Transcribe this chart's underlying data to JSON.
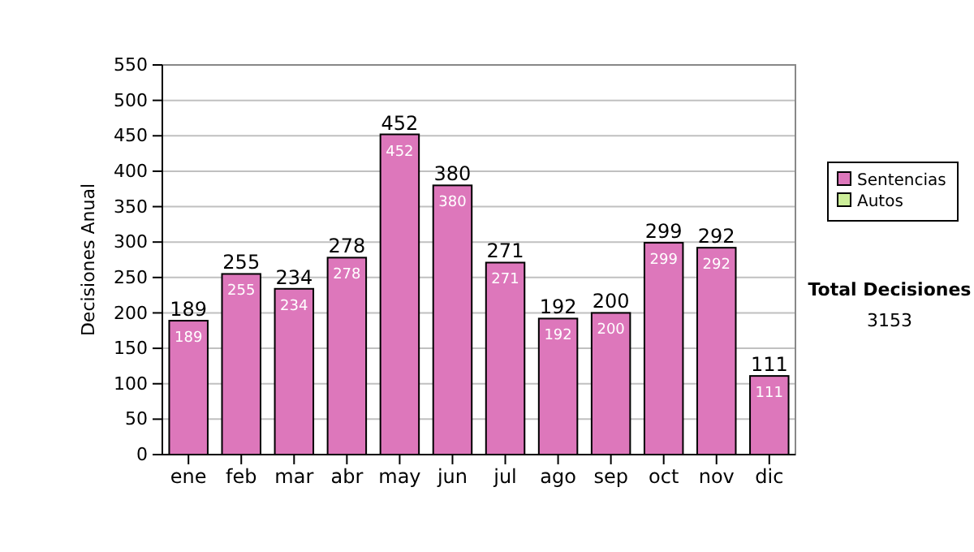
{
  "chart_data": {
    "type": "bar",
    "ylabel": "Decisiones Anual",
    "categories": [
      "ene",
      "feb",
      "mar",
      "abr",
      "may",
      "jun",
      "jul",
      "ago",
      "sep",
      "oct",
      "nov",
      "dic"
    ],
    "stacked": true,
    "series": [
      {
        "name": "Sentencias",
        "color": "#dd77bb",
        "values": [
          189,
          255,
          234,
          278,
          452,
          380,
          271,
          192,
          200,
          299,
          292,
          111
        ],
        "value_labels": [
          "189",
          "255",
          "234",
          "278",
          "452",
          "380",
          "271",
          "192",
          "200",
          "299",
          "292",
          "111"
        ]
      },
      {
        "name": "Autos",
        "color": "#ccee99",
        "values": [
          0,
          0,
          0,
          0,
          0,
          0,
          0,
          0,
          0,
          0,
          0,
          0
        ]
      }
    ],
    "totals": [
      "189",
      "255",
      "234",
      "278",
      "452",
      "380",
      "271",
      "192",
      "200",
      "299",
      "292",
      "111"
    ],
    "ylim": [
      0,
      550
    ],
    "yticks": [
      0,
      50,
      100,
      150,
      200,
      250,
      300,
      350,
      400,
      450,
      500,
      550
    ],
    "grid": "y",
    "legend": "right",
    "annotations": [
      "Total Decisiones",
      "3153"
    ]
  }
}
